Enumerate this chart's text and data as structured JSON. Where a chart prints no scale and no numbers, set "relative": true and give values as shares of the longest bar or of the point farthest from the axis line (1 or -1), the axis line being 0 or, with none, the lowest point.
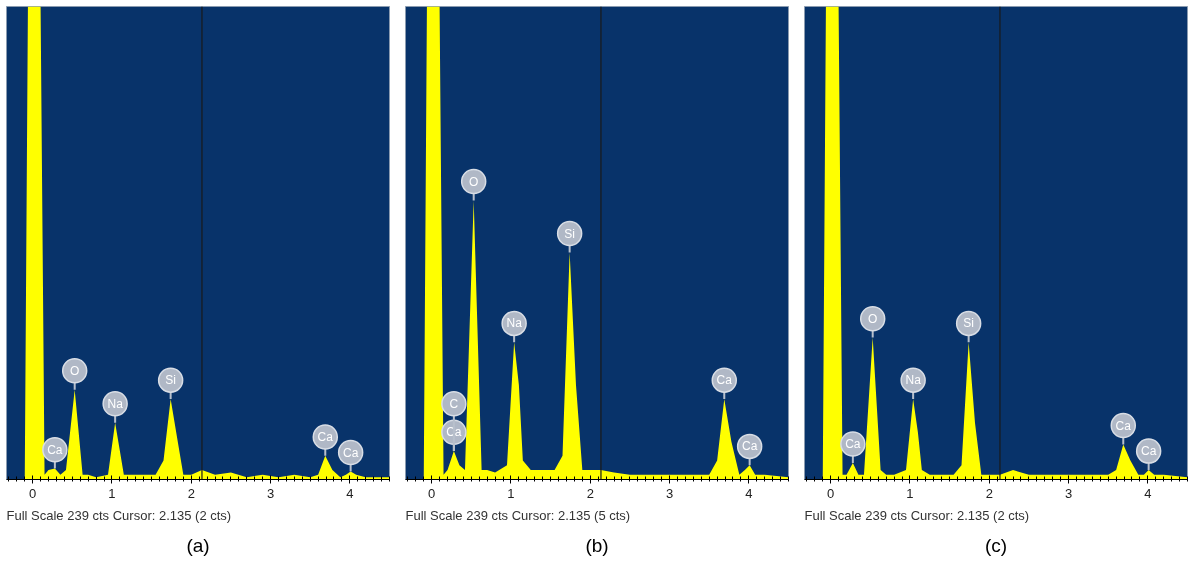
{
  "chart_data": [
    {
      "type": "area",
      "title": "(a)",
      "relative": true,
      "xlim": [
        -0.33,
        4.5
      ],
      "xticks": [
        0,
        1,
        2,
        3,
        4
      ],
      "x": [
        -0.33,
        -0.1,
        -0.06,
        0.1,
        0.15,
        0.2,
        0.28,
        0.35,
        0.42,
        0.53,
        0.63,
        0.7,
        0.8,
        0.95,
        1.04,
        1.1,
        1.15,
        1.25,
        1.4,
        1.55,
        1.65,
        1.74,
        1.82,
        1.9,
        2.0,
        2.135,
        2.3,
        2.5,
        2.7,
        2.9,
        3.1,
        3.3,
        3.5,
        3.6,
        3.69,
        3.78,
        3.88,
        3.95,
        4.01,
        4.08,
        4.2,
        4.5
      ],
      "series": [
        {
          "color": "#ffff00",
          "values": [
            0,
            0,
            1,
            1,
            0.01,
            0.02,
            0.023,
            0.01,
            0.02,
            0.19,
            0.01,
            0.01,
            0.005,
            0.01,
            0.12,
            0.06,
            0.01,
            0.01,
            0.01,
            0.01,
            0.04,
            0.17,
            0.09,
            0.01,
            0.01,
            0.02,
            0.01,
            0.015,
            0.005,
            0.01,
            0.005,
            0.01,
            0.005,
            0.01,
            0.05,
            0.02,
            0.005,
            0.01,
            0.017,
            0.01,
            0.005,
            0.005
          ]
        }
      ],
      "ref_lines": [
        {
          "axis": "x",
          "value": 2.135,
          "color": "#1a1a1a"
        }
      ],
      "annotations": [
        {
          "text": "Ca",
          "x": 0.28,
          "y": 0.023
        },
        {
          "text": "O",
          "x": 0.53,
          "y": 0.19
        },
        {
          "text": "Na",
          "x": 1.04,
          "y": 0.12
        },
        {
          "text": "Si",
          "x": 1.74,
          "y": 0.17
        },
        {
          "text": "Ca",
          "x": 3.69,
          "y": 0.05
        },
        {
          "text": "Ca",
          "x": 4.01,
          "y": 0.017
        },
        "Full Scale 239 cts Cursor: 2.135  (2 cts)"
      ]
    },
    {
      "type": "area",
      "title": "(b)",
      "relative": true,
      "xlim": [
        -0.33,
        4.5
      ],
      "xticks": [
        0,
        1,
        2,
        3,
        4
      ],
      "x": [
        -0.33,
        -0.1,
        -0.06,
        0.1,
        0.15,
        0.2,
        0.28,
        0.35,
        0.42,
        0.53,
        0.63,
        0.7,
        0.8,
        0.95,
        1.04,
        1.1,
        1.15,
        1.25,
        1.4,
        1.55,
        1.65,
        1.74,
        1.82,
        1.9,
        2.0,
        2.135,
        2.3,
        2.5,
        2.7,
        2.9,
        3.1,
        3.3,
        3.5,
        3.6,
        3.69,
        3.78,
        3.88,
        3.95,
        4.01,
        4.08,
        4.2,
        4.5
      ],
      "series": [
        {
          "color": "#ffff00",
          "values": [
            0,
            0,
            1,
            1,
            0.01,
            0.02,
            0.06,
            0.03,
            0.02,
            0.59,
            0.02,
            0.02,
            0.015,
            0.03,
            0.29,
            0.2,
            0.04,
            0.02,
            0.02,
            0.02,
            0.05,
            0.48,
            0.2,
            0.02,
            0.02,
            0.02,
            0.015,
            0.01,
            0.01,
            0.01,
            0.01,
            0.01,
            0.01,
            0.04,
            0.17,
            0.08,
            0.01,
            0.02,
            0.03,
            0.01,
            0.01,
            0.005
          ]
        }
      ],
      "ref_lines": [
        {
          "axis": "x",
          "value": 2.135,
          "color": "#1a1a1a"
        }
      ],
      "annotations": [
        {
          "text": "Ca",
          "x": 0.28,
          "y": 0.06
        },
        {
          "text": "C",
          "x": 0.28,
          "y": 0.06
        },
        {
          "text": "O",
          "x": 0.53,
          "y": 0.59
        },
        {
          "text": "Na",
          "x": 1.04,
          "y": 0.29
        },
        {
          "text": "Si",
          "x": 1.74,
          "y": 0.48
        },
        {
          "text": "Ca",
          "x": 3.69,
          "y": 0.17
        },
        {
          "text": "Ca",
          "x": 4.01,
          "y": 0.03
        },
        "Full Scale 239 cts Cursor: 2.135  (5 cts)"
      ]
    },
    {
      "type": "area",
      "title": "(c)",
      "relative": true,
      "xlim": [
        -0.33,
        4.5
      ],
      "xticks": [
        0,
        1,
        2,
        3,
        4
      ],
      "x": [
        -0.33,
        -0.1,
        -0.06,
        0.1,
        0.15,
        0.2,
        0.28,
        0.35,
        0.42,
        0.53,
        0.63,
        0.7,
        0.8,
        0.95,
        1.04,
        1.1,
        1.15,
        1.25,
        1.4,
        1.55,
        1.65,
        1.74,
        1.82,
        1.9,
        2.0,
        2.135,
        2.3,
        2.5,
        2.7,
        2.9,
        3.1,
        3.3,
        3.5,
        3.6,
        3.69,
        3.78,
        3.88,
        3.95,
        4.01,
        4.08,
        4.2,
        4.5
      ],
      "series": [
        {
          "color": "#ffff00",
          "values": [
            0,
            0,
            1,
            1,
            0.01,
            0.01,
            0.035,
            0.01,
            0.01,
            0.3,
            0.02,
            0.01,
            0.01,
            0.02,
            0.17,
            0.1,
            0.02,
            0.01,
            0.01,
            0.01,
            0.03,
            0.29,
            0.12,
            0.01,
            0.01,
            0.01,
            0.02,
            0.01,
            0.01,
            0.01,
            0.01,
            0.01,
            0.01,
            0.02,
            0.074,
            0.04,
            0.01,
            0.01,
            0.02,
            0.01,
            0.01,
            0.005
          ]
        }
      ],
      "ref_lines": [
        {
          "axis": "x",
          "value": 2.135,
          "color": "#1a1a1a"
        }
      ],
      "annotations": [
        {
          "text": "Ca",
          "x": 0.28,
          "y": 0.035
        },
        {
          "text": "O",
          "x": 0.53,
          "y": 0.3
        },
        {
          "text": "Na",
          "x": 1.04,
          "y": 0.17
        },
        {
          "text": "Si",
          "x": 1.74,
          "y": 0.29
        },
        {
          "text": "Ca",
          "x": 3.69,
          "y": 0.074
        },
        {
          "text": "Ca",
          "x": 4.01,
          "y": 0.02
        },
        "Full Scale 239 cts Cursor: 2.135  (2 cts)"
      ]
    }
  ]
}
